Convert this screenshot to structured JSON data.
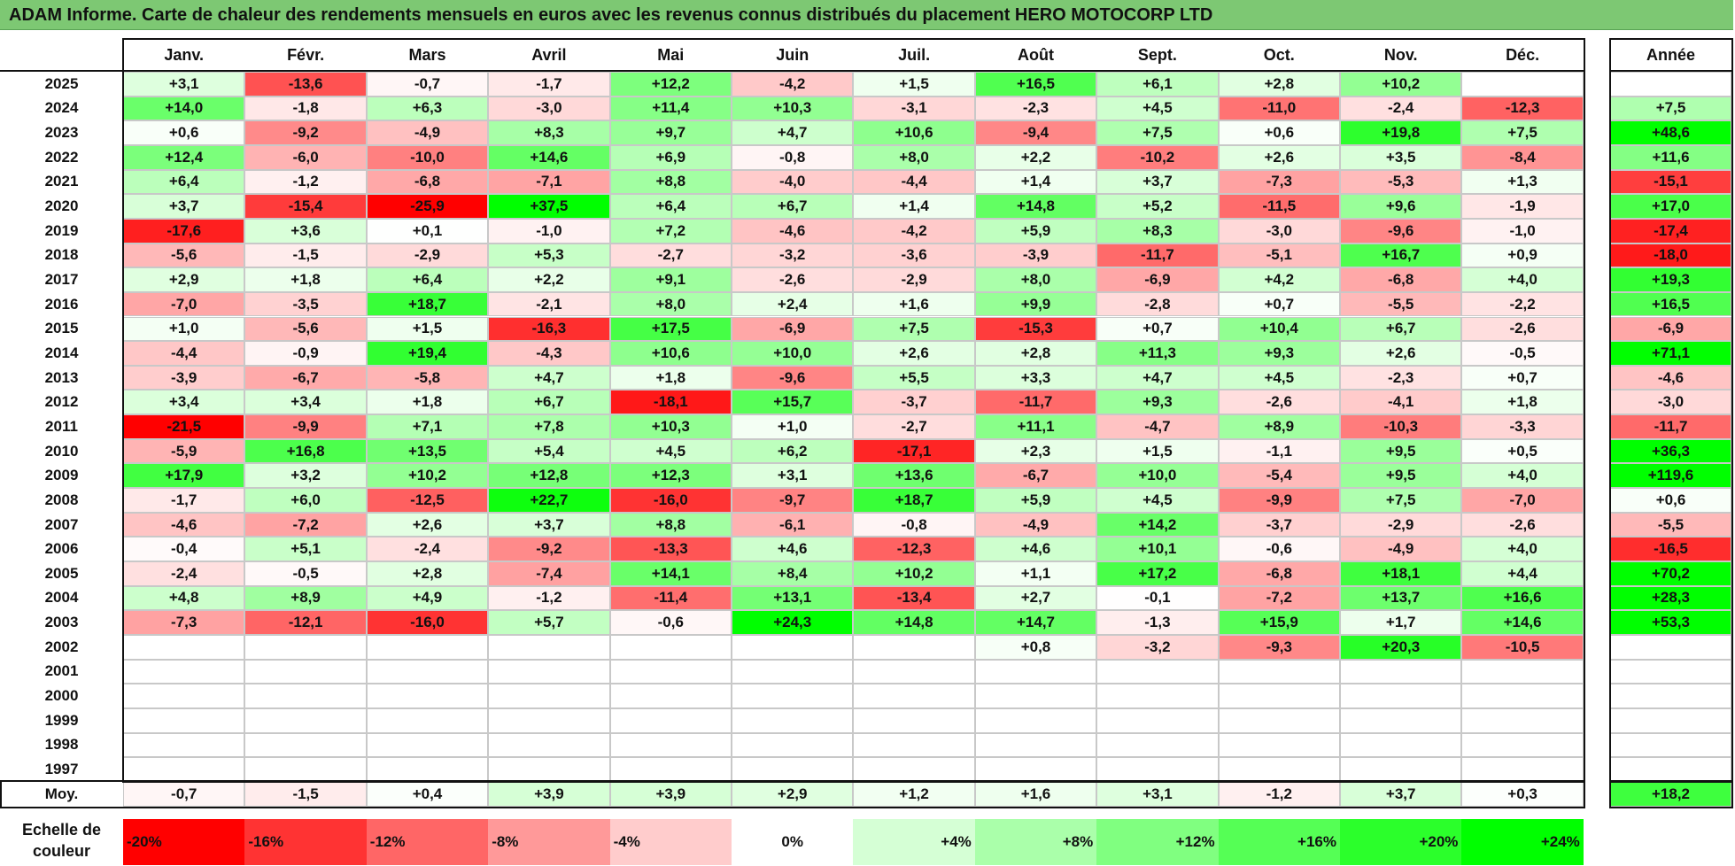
{
  "title": "ADAM Informe. Carte de chaleur des rendements mensuels en euros avec les revenus connus distribués du placement HERO MOTOCORP LTD",
  "month_headers": [
    "Janv.",
    "Févr.",
    "Mars",
    "Avril",
    "Mai",
    "Juin",
    "Juil.",
    "Août",
    "Sept.",
    "Oct.",
    "Nov.",
    "Déc."
  ],
  "year_header": "Année",
  "avg_label": "Moy.",
  "scale_label": "Echelle de couleur",
  "scale": {
    "steps": [
      -20,
      -16,
      -12,
      -8,
      -4,
      0,
      4,
      8,
      12,
      16,
      20,
      24
    ],
    "labels": [
      "-20%",
      "-16%",
      "-12%",
      "-8%",
      "-4%",
      "0%",
      "+4%",
      "+8%",
      "+12%",
      "+16%",
      "+20%",
      "+24%"
    ]
  },
  "colors": {
    "negative": "#ff0000",
    "neutral": "#ffffff",
    "positive": "#00ff00"
  },
  "chart_data": {
    "type": "heatmap",
    "x_categories": [
      "Janv.",
      "Févr.",
      "Mars",
      "Avril",
      "Mai",
      "Juin",
      "Juil.",
      "Août",
      "Sept.",
      "Oct.",
      "Nov.",
      "Déc."
    ],
    "rows": [
      {
        "year": "2025",
        "values": [
          3.1,
          -13.6,
          -0.7,
          -1.7,
          12.2,
          -4.2,
          1.5,
          16.5,
          6.1,
          2.8,
          10.2,
          null
        ],
        "annual": null
      },
      {
        "year": "2024",
        "values": [
          14.0,
          -1.8,
          6.3,
          -3.0,
          11.4,
          10.3,
          -3.1,
          -2.3,
          4.5,
          -11.0,
          -2.4,
          -12.3
        ],
        "annual": 7.5
      },
      {
        "year": "2023",
        "values": [
          0.6,
          -9.2,
          -4.9,
          8.3,
          9.7,
          4.7,
          10.6,
          -9.4,
          7.5,
          0.6,
          19.8,
          7.5
        ],
        "annual": 48.6
      },
      {
        "year": "2022",
        "values": [
          12.4,
          -6.0,
          -10.0,
          14.6,
          6.9,
          -0.8,
          8.0,
          2.2,
          -10.2,
          2.6,
          3.5,
          -8.4
        ],
        "annual": 11.6
      },
      {
        "year": "2021",
        "values": [
          6.4,
          -1.2,
          -6.8,
          -7.1,
          8.8,
          -4.0,
          -4.4,
          1.4,
          3.7,
          -7.3,
          -5.3,
          1.3
        ],
        "annual": -15.1
      },
      {
        "year": "2020",
        "values": [
          3.7,
          -15.4,
          -25.9,
          37.5,
          6.4,
          6.7,
          1.4,
          14.8,
          5.2,
          -11.5,
          9.6,
          -1.9
        ],
        "annual": 17.0
      },
      {
        "year": "2019",
        "values": [
          -17.6,
          3.6,
          0.1,
          -1.0,
          7.2,
          -4.6,
          -4.2,
          5.9,
          8.3,
          -3.0,
          -9.6,
          -1.0
        ],
        "annual": -17.4
      },
      {
        "year": "2018",
        "values": [
          -5.6,
          -1.5,
          -2.9,
          5.3,
          -2.7,
          -3.2,
          -3.6,
          -3.9,
          -11.7,
          -5.1,
          16.7,
          0.9
        ],
        "annual": -18.0
      },
      {
        "year": "2017",
        "values": [
          2.9,
          1.8,
          6.4,
          2.2,
          9.1,
          -2.6,
          -2.9,
          8.0,
          -6.9,
          4.2,
          -6.8,
          4.0
        ],
        "annual": 19.3
      },
      {
        "year": "2016",
        "values": [
          -7.0,
          -3.5,
          18.7,
          -2.1,
          8.0,
          2.4,
          1.6,
          9.9,
          -2.8,
          0.7,
          -5.5,
          -2.2
        ],
        "annual": 16.5
      },
      {
        "year": "2015",
        "values": [
          1.0,
          -5.6,
          1.5,
          -16.3,
          17.5,
          -6.9,
          7.5,
          -15.3,
          0.7,
          10.4,
          6.7,
          -2.6
        ],
        "annual": -6.9
      },
      {
        "year": "2014",
        "values": [
          -4.4,
          -0.9,
          19.4,
          -4.3,
          10.6,
          10.0,
          2.6,
          2.8,
          11.3,
          9.3,
          2.6,
          -0.5
        ],
        "annual": 71.1
      },
      {
        "year": "2013",
        "values": [
          -3.9,
          -6.7,
          -5.8,
          4.7,
          1.8,
          -9.6,
          5.5,
          3.3,
          4.7,
          4.5,
          -2.3,
          0.7
        ],
        "annual": -4.6
      },
      {
        "year": "2012",
        "values": [
          3.4,
          3.4,
          1.8,
          6.7,
          -18.1,
          15.7,
          -3.7,
          -11.7,
          9.3,
          -2.6,
          -4.1,
          1.8
        ],
        "annual": -3.0
      },
      {
        "year": "2011",
        "values": [
          -21.5,
          -9.9,
          7.1,
          7.8,
          10.3,
          1.0,
          -2.7,
          11.1,
          -4.7,
          8.9,
          -10.3,
          -3.3
        ],
        "annual": -11.7
      },
      {
        "year": "2010",
        "values": [
          -5.9,
          16.8,
          13.5,
          5.4,
          4.5,
          6.2,
          -17.1,
          2.3,
          1.5,
          -1.1,
          9.5,
          0.5
        ],
        "annual": 36.3
      },
      {
        "year": "2009",
        "values": [
          17.9,
          3.2,
          10.2,
          12.8,
          12.3,
          3.1,
          13.6,
          -6.7,
          10.0,
          -5.4,
          9.5,
          4.0
        ],
        "annual": 119.6
      },
      {
        "year": "2008",
        "values": [
          -1.7,
          6.0,
          -12.5,
          22.7,
          -16.0,
          -9.7,
          18.7,
          5.9,
          4.5,
          -9.9,
          7.5,
          -7.0
        ],
        "annual": 0.6
      },
      {
        "year": "2007",
        "values": [
          -4.6,
          -7.2,
          2.6,
          3.7,
          8.8,
          -6.1,
          -0.8,
          -4.9,
          14.2,
          -3.7,
          -2.9,
          -2.6
        ],
        "annual": -5.5
      },
      {
        "year": "2006",
        "values": [
          -0.4,
          5.1,
          -2.4,
          -9.2,
          -13.3,
          4.6,
          -12.3,
          4.6,
          10.1,
          -0.6,
          -4.9,
          4.0
        ],
        "annual": -16.5
      },
      {
        "year": "2005",
        "values": [
          -2.4,
          -0.5,
          2.8,
          -7.4,
          14.1,
          8.4,
          10.2,
          1.1,
          17.2,
          -6.8,
          18.1,
          4.4
        ],
        "annual": 70.2
      },
      {
        "year": "2004",
        "values": [
          4.8,
          8.9,
          4.9,
          -1.2,
          -11.4,
          13.1,
          -13.4,
          2.7,
          -0.1,
          -7.2,
          13.7,
          16.6
        ],
        "annual": 28.3
      },
      {
        "year": "2003",
        "values": [
          -7.3,
          -12.1,
          -16.0,
          5.7,
          -0.6,
          24.3,
          14.8,
          14.7,
          -1.3,
          15.9,
          1.7,
          14.6
        ],
        "annual": 53.3
      },
      {
        "year": "2002",
        "values": [
          null,
          null,
          null,
          null,
          null,
          null,
          null,
          0.8,
          -3.2,
          -9.3,
          20.3,
          -10.5
        ],
        "annual": null
      },
      {
        "year": "2001",
        "values": [
          null,
          null,
          null,
          null,
          null,
          null,
          null,
          null,
          null,
          null,
          null,
          null
        ],
        "annual": null
      },
      {
        "year": "2000",
        "values": [
          null,
          null,
          null,
          null,
          null,
          null,
          null,
          null,
          null,
          null,
          null,
          null
        ],
        "annual": null
      },
      {
        "year": "1999",
        "values": [
          null,
          null,
          null,
          null,
          null,
          null,
          null,
          null,
          null,
          null,
          null,
          null
        ],
        "annual": null
      },
      {
        "year": "1998",
        "values": [
          null,
          null,
          null,
          null,
          null,
          null,
          null,
          null,
          null,
          null,
          null,
          null
        ],
        "annual": null
      },
      {
        "year": "1997",
        "values": [
          null,
          null,
          null,
          null,
          null,
          null,
          null,
          null,
          null,
          null,
          null,
          null
        ],
        "annual": null
      }
    ],
    "average": {
      "values": [
        -0.7,
        -1.5,
        0.4,
        3.9,
        3.9,
        2.9,
        1.2,
        1.6,
        3.1,
        -1.2,
        3.7,
        0.3
      ],
      "annual": 18.2
    },
    "color_range": [
      -20,
      24
    ]
  }
}
